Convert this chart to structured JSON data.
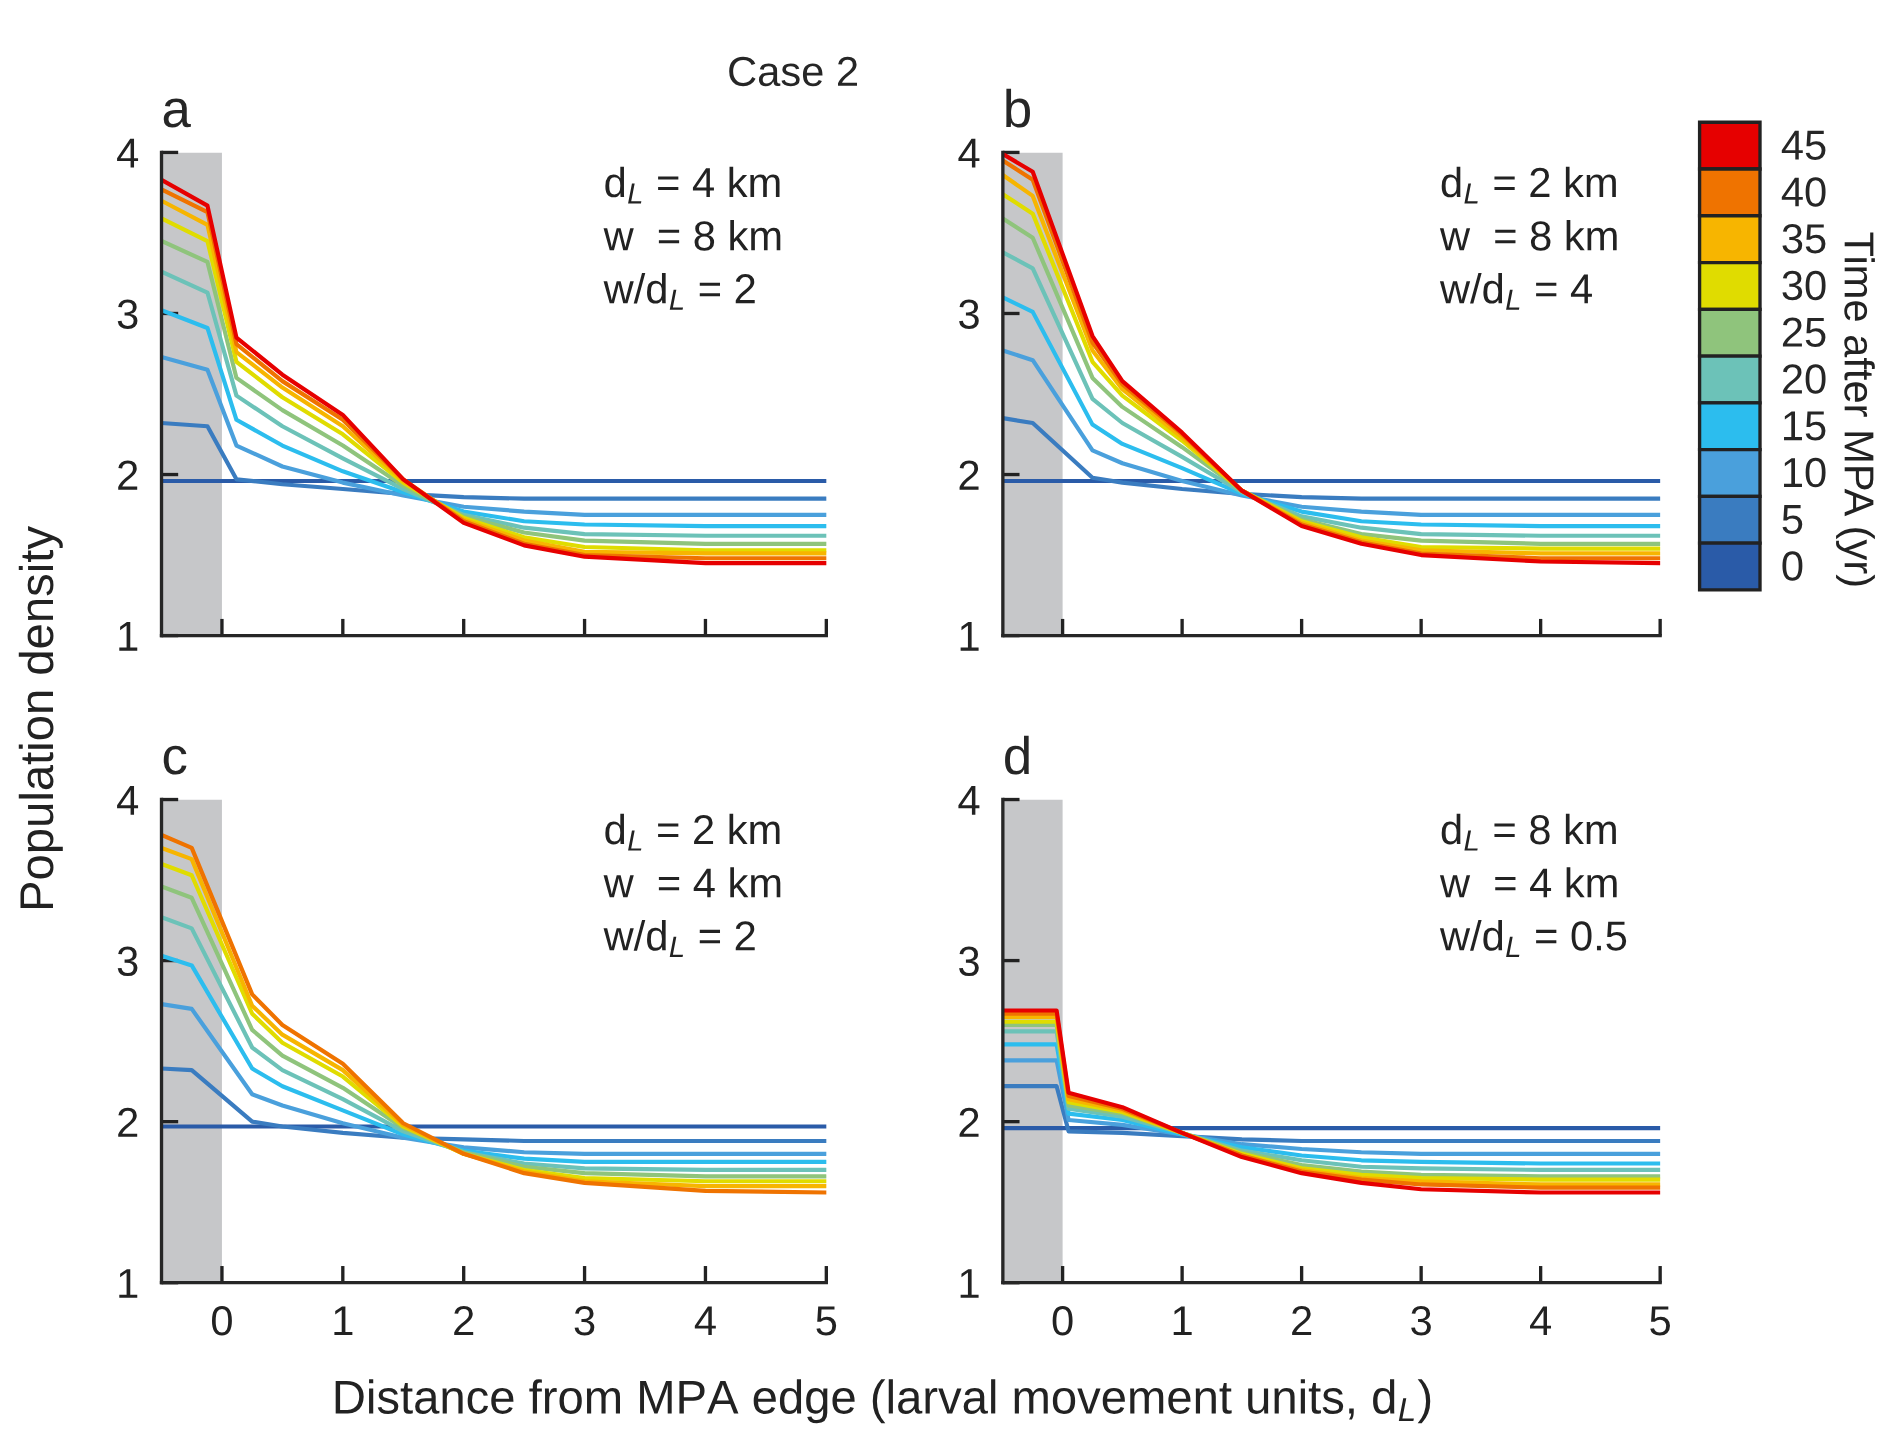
{
  "chart_data": [
    {
      "type": "line",
      "title": "Case 2",
      "subtitle": "a",
      "ylabel": "Population density",
      "x": [
        -0.5,
        -0.12,
        0.12,
        0.5,
        1,
        1.5,
        2,
        2.5,
        3,
        4,
        5
      ],
      "xlim": [
        -0.5,
        5
      ],
      "xticks": [
        0,
        1,
        2,
        3,
        4,
        5
      ],
      "ylim": [
        1,
        4
      ],
      "yticks": [
        1,
        2,
        3,
        4
      ],
      "tick_labels": "y",
      "grid": false,
      "legend": "right",
      "legend_title": "Time after MPA (yr)",
      "bands": [
        {
          "axis": "x",
          "from": -0.5,
          "to": 0,
          "color": "#c6c7c9"
        }
      ],
      "annotations": [
        "d$_{L}$ = 4 km",
        "w  = 8 km",
        "w/d$_{L}$ = 2"
      ],
      "series": [
        {
          "name": "0",
          "color": "#2a5ba8",
          "values": [
            1.96,
            1.96,
            1.96,
            1.96,
            1.96,
            1.96,
            1.96,
            1.96,
            1.96,
            1.96,
            1.96
          ]
        },
        {
          "name": "5",
          "color": "#3a7cc0",
          "values": [
            2.32,
            2.3,
            1.97,
            1.94,
            1.91,
            1.88,
            1.86,
            1.85,
            1.85,
            1.85,
            1.85
          ]
        },
        {
          "name": "10",
          "color": "#4aa0dc",
          "values": [
            2.73,
            2.65,
            2.18,
            2.05,
            1.95,
            1.87,
            1.8,
            1.77,
            1.75,
            1.75,
            1.75
          ]
        },
        {
          "name": "15",
          "color": "#2cbdee",
          "values": [
            3.02,
            2.91,
            2.34,
            2.18,
            2.02,
            1.89,
            1.77,
            1.71,
            1.69,
            1.68,
            1.68
          ]
        },
        {
          "name": "20",
          "color": "#6cc2b8",
          "values": [
            3.26,
            3.13,
            2.49,
            2.3,
            2.1,
            1.91,
            1.75,
            1.67,
            1.63,
            1.62,
            1.62
          ]
        },
        {
          "name": "25",
          "color": "#8fc47c",
          "values": [
            3.45,
            3.32,
            2.6,
            2.4,
            2.18,
            1.93,
            1.74,
            1.64,
            1.59,
            1.57,
            1.57
          ]
        },
        {
          "name": "30",
          "color": "#e0dc00",
          "values": [
            3.59,
            3.45,
            2.7,
            2.48,
            2.25,
            1.95,
            1.73,
            1.61,
            1.55,
            1.53,
            1.53
          ]
        },
        {
          "name": "35",
          "color": "#f7b500",
          "values": [
            3.7,
            3.55,
            2.76,
            2.54,
            2.3,
            1.96,
            1.72,
            1.59,
            1.52,
            1.51,
            1.51
          ]
        },
        {
          "name": "40",
          "color": "#ef7300",
          "values": [
            3.77,
            3.63,
            2.81,
            2.58,
            2.34,
            1.97,
            1.71,
            1.57,
            1.5,
            1.48,
            1.48
          ]
        },
        {
          "name": "45",
          "color": "#e60000",
          "values": [
            3.83,
            3.67,
            2.85,
            2.62,
            2.37,
            1.97,
            1.7,
            1.56,
            1.49,
            1.45,
            1.45
          ]
        }
      ]
    },
    {
      "type": "line",
      "subtitle": "b",
      "x": [
        -0.5,
        -0.25,
        0.25,
        0.5,
        1,
        1.5,
        2,
        2.5,
        3,
        4,
        5
      ],
      "xlim": [
        -0.5,
        5
      ],
      "xticks": [
        0,
        1,
        2,
        3,
        4,
        5
      ],
      "ylim": [
        1,
        4
      ],
      "yticks": [
        1,
        2,
        3,
        4
      ],
      "tick_labels": "y",
      "grid": false,
      "legend": false,
      "bands": [
        {
          "axis": "x",
          "from": -0.5,
          "to": 0,
          "color": "#c6c7c9"
        }
      ],
      "annotations": [
        "d$_{L}$ = 2 km",
        "w  = 8 km",
        "w/d$_{L}$ = 4"
      ],
      "series": [
        {
          "color": "#2a5ba8",
          "values": [
            1.96,
            1.96,
            1.96,
            1.96,
            1.96,
            1.96,
            1.96,
            1.96,
            1.96,
            1.96,
            1.96
          ]
        },
        {
          "color": "#3a7cc0",
          "values": [
            2.35,
            2.32,
            1.98,
            1.95,
            1.91,
            1.88,
            1.86,
            1.85,
            1.85,
            1.85,
            1.85
          ]
        },
        {
          "color": "#4aa0dc",
          "values": [
            2.77,
            2.71,
            2.15,
            2.07,
            1.96,
            1.87,
            1.8,
            1.77,
            1.75,
            1.75,
            1.75
          ]
        },
        {
          "color": "#2cbdee",
          "values": [
            3.1,
            3.01,
            2.31,
            2.19,
            2.04,
            1.88,
            1.77,
            1.71,
            1.69,
            1.68,
            1.68
          ]
        },
        {
          "color": "#6cc2b8",
          "values": [
            3.38,
            3.28,
            2.47,
            2.32,
            2.11,
            1.89,
            1.74,
            1.67,
            1.63,
            1.62,
            1.62
          ]
        },
        {
          "color": "#8fc47c",
          "values": [
            3.59,
            3.47,
            2.6,
            2.42,
            2.17,
            1.9,
            1.72,
            1.63,
            1.59,
            1.57,
            1.57
          ]
        },
        {
          "color": "#e0dc00",
          "values": [
            3.74,
            3.62,
            2.7,
            2.49,
            2.21,
            1.9,
            1.71,
            1.61,
            1.55,
            1.54,
            1.54
          ]
        },
        {
          "color": "#f7b500",
          "values": [
            3.86,
            3.73,
            2.77,
            2.53,
            2.23,
            1.9,
            1.7,
            1.59,
            1.53,
            1.51,
            1.51
          ]
        },
        {
          "color": "#ef7300",
          "values": [
            3.95,
            3.83,
            2.82,
            2.56,
            2.25,
            1.9,
            1.69,
            1.58,
            1.51,
            1.48,
            1.48
          ]
        },
        {
          "color": "#e60000",
          "values": [
            3.99,
            3.88,
            2.86,
            2.58,
            2.26,
            1.9,
            1.68,
            1.57,
            1.5,
            1.46,
            1.45
          ]
        }
      ]
    },
    {
      "type": "line",
      "subtitle": "c",
      "xlabel": "Distance from MPA edge (larval movement units, d$_{L}$)",
      "x": [
        -0.5,
        -0.25,
        0.25,
        0.5,
        1,
        1.5,
        2,
        2.5,
        3,
        4,
        5
      ],
      "xlim": [
        -0.5,
        5
      ],
      "xticks": [
        0,
        1,
        2,
        3,
        4,
        5
      ],
      "ylim": [
        1,
        4
      ],
      "yticks": [
        1,
        2,
        3,
        4
      ],
      "grid": false,
      "legend": false,
      "bands": [
        {
          "axis": "x",
          "from": -0.5,
          "to": 0,
          "color": "#c6c7c9"
        }
      ],
      "annotations": [
        "d$_{L}$ = 2 km",
        "w  = 4 km",
        "w/d$_{L}$ = 2"
      ],
      "series": [
        {
          "color": "#2a5ba8",
          "values": [
            1.97,
            1.97,
            1.97,
            1.97,
            1.97,
            1.97,
            1.97,
            1.97,
            1.97,
            1.97,
            1.97
          ]
        },
        {
          "color": "#3a7cc0",
          "values": [
            2.33,
            2.32,
            2.0,
            1.97,
            1.93,
            1.9,
            1.89,
            1.88,
            1.88,
            1.88,
            1.88
          ]
        },
        {
          "color": "#4aa0dc",
          "values": [
            2.73,
            2.7,
            2.17,
            2.1,
            1.99,
            1.9,
            1.84,
            1.81,
            1.8,
            1.8,
            1.8
          ]
        },
        {
          "color": "#2cbdee",
          "values": [
            3.03,
            2.97,
            2.33,
            2.22,
            2.07,
            1.92,
            1.82,
            1.77,
            1.75,
            1.75,
            1.75
          ]
        },
        {
          "color": "#6cc2b8",
          "values": [
            3.27,
            3.2,
            2.46,
            2.32,
            2.14,
            1.94,
            1.81,
            1.74,
            1.71,
            1.7,
            1.7
          ]
        },
        {
          "color": "#8fc47c",
          "values": [
            3.46,
            3.39,
            2.57,
            2.41,
            2.21,
            1.96,
            1.81,
            1.72,
            1.68,
            1.66,
            1.66
          ]
        },
        {
          "color": "#e0dc00",
          "values": [
            3.6,
            3.53,
            2.67,
            2.49,
            2.28,
            1.97,
            1.8,
            1.7,
            1.65,
            1.63,
            1.63
          ]
        },
        {
          "color": "#f7b500",
          "values": [
            3.7,
            3.63,
            2.72,
            2.54,
            2.32,
            1.98,
            1.8,
            1.69,
            1.63,
            1.6,
            1.6
          ]
        },
        {
          "color": "#ef7300",
          "values": [
            3.78,
            3.7,
            2.79,
            2.6,
            2.36,
            1.99,
            1.8,
            1.68,
            1.62,
            1.57,
            1.56
          ]
        }
      ]
    },
    {
      "type": "line",
      "subtitle": "d",
      "x": [
        -0.5,
        -0.05,
        0.05,
        0.5,
        1,
        1.5,
        2,
        2.5,
        3,
        4,
        5
      ],
      "xlim": [
        -0.5,
        5
      ],
      "xticks": [
        0,
        1,
        2,
        3,
        4,
        5
      ],
      "ylim": [
        1,
        4
      ],
      "yticks": [
        1,
        2,
        3,
        4
      ],
      "grid": false,
      "legend": false,
      "bands": [
        {
          "axis": "x",
          "from": -0.5,
          "to": 0,
          "color": "#c6c7c9"
        }
      ],
      "annotations": [
        "d$_{L}$ = 8 km",
        "w  = 4 km",
        "w/d$_{L}$ = 0.5"
      ],
      "series": [
        {
          "color": "#2a5ba8",
          "values": [
            1.96,
            1.96,
            1.96,
            1.96,
            1.96,
            1.96,
            1.96,
            1.96,
            1.96,
            1.96,
            1.96
          ]
        },
        {
          "color": "#3a7cc0",
          "values": [
            2.22,
            2.22,
            1.94,
            1.93,
            1.91,
            1.89,
            1.88,
            1.88,
            1.88,
            1.88,
            1.88
          ]
        },
        {
          "color": "#4aa0dc",
          "values": [
            2.38,
            2.38,
            2.01,
            1.98,
            1.92,
            1.86,
            1.83,
            1.81,
            1.8,
            1.8,
            1.8
          ]
        },
        {
          "color": "#2cbdee",
          "values": [
            2.48,
            2.48,
            2.05,
            2.01,
            1.92,
            1.84,
            1.79,
            1.76,
            1.75,
            1.74,
            1.74
          ]
        },
        {
          "color": "#6cc2b8",
          "values": [
            2.56,
            2.56,
            2.08,
            2.03,
            1.93,
            1.82,
            1.76,
            1.72,
            1.71,
            1.7,
            1.7
          ]
        },
        {
          "color": "#8fc47c",
          "values": [
            2.6,
            2.6,
            2.1,
            2.05,
            1.93,
            1.81,
            1.73,
            1.69,
            1.67,
            1.66,
            1.66
          ]
        },
        {
          "color": "#e0dc00",
          "values": [
            2.62,
            2.62,
            2.12,
            2.06,
            1.93,
            1.8,
            1.71,
            1.67,
            1.65,
            1.64,
            1.64
          ]
        },
        {
          "color": "#f7b500",
          "values": [
            2.65,
            2.65,
            2.14,
            2.07,
            1.93,
            1.79,
            1.7,
            1.65,
            1.63,
            1.61,
            1.61
          ]
        },
        {
          "color": "#ef7300",
          "values": [
            2.67,
            2.67,
            2.16,
            2.08,
            1.93,
            1.79,
            1.69,
            1.64,
            1.61,
            1.59,
            1.59
          ]
        },
        {
          "color": "#e60000",
          "values": [
            2.69,
            2.69,
            2.18,
            2.09,
            1.93,
            1.78,
            1.68,
            1.62,
            1.58,
            1.56,
            1.56
          ]
        }
      ]
    }
  ]
}
